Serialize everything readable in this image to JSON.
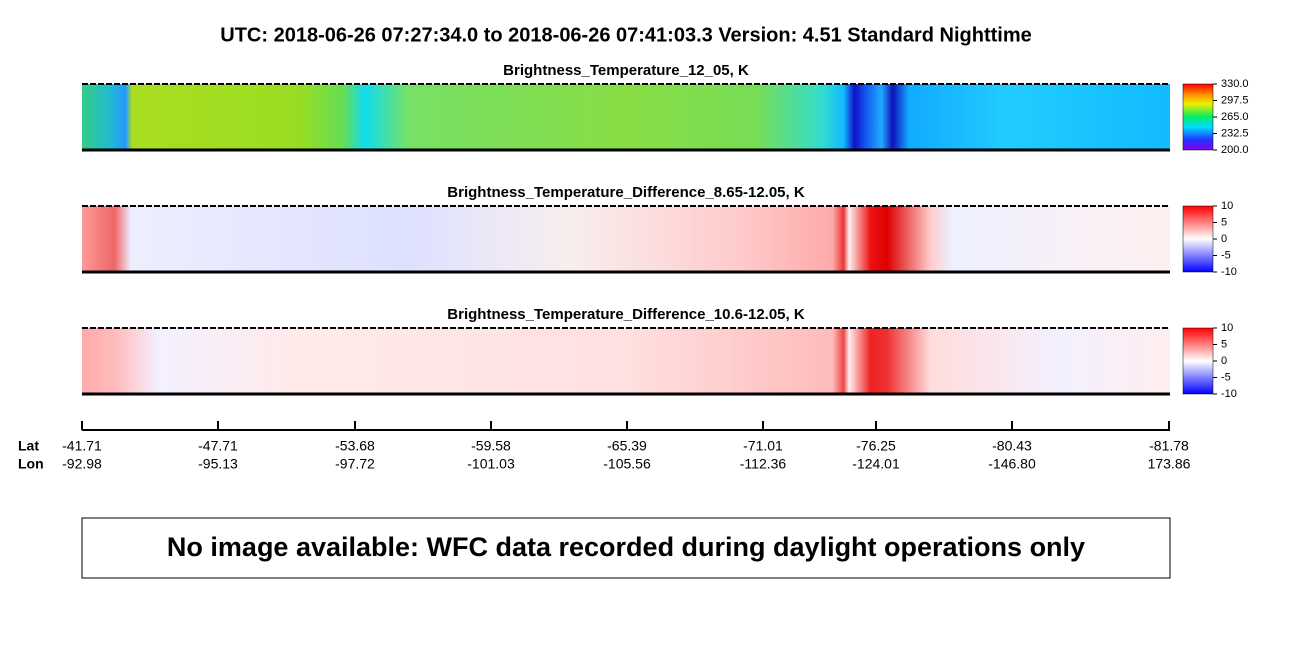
{
  "header": {
    "title": "UTC:  2018-06-26   07:27:34.0  to  2018-06-26   07:41:03.3    Version: 4.51  Standard Nighttime"
  },
  "panels": [
    {
      "title": "Brightness_Temperature_12_05, K",
      "colorbar": {
        "lim": [
          200,
          330
        ],
        "ticks": [
          {
            "value": 200,
            "label": "200.0"
          },
          232.5,
          {
            "value": 265,
            "label": "265.0"
          },
          297.5,
          {
            "value": 330,
            "label": "330.0"
          }
        ]
      }
    },
    {
      "title": "Brightness_Temperature_Difference_8.65-12.05, K",
      "colorbar": {
        "lim": [
          -10,
          10
        ],
        "ticks": [
          -10,
          -5,
          0,
          5,
          10
        ]
      }
    },
    {
      "title": "Brightness_Temperature_Difference_10.6-12.05, K",
      "colorbar": {
        "lim": [
          -10,
          10
        ],
        "ticks": [
          -10,
          -5,
          0,
          5,
          10
        ]
      }
    }
  ],
  "track_axis": {
    "row_labels": [
      "Lat",
      "Lon"
    ],
    "ticks": [
      {
        "lat": "-41.71",
        "lon": "-92.98"
      },
      {
        "lat": "-47.71",
        "lon": "-95.13"
      },
      {
        "lat": "-53.68",
        "lon": "-97.72"
      },
      {
        "lat": "-59.58",
        "lon": "-101.03"
      },
      {
        "lat": "-65.39",
        "lon": "-105.56"
      },
      {
        "lat": "-71.01",
        "lon": "-112.36"
      },
      {
        "lat": "-76.25",
        "lon": "-124.01"
      },
      {
        "lat": "-80.43",
        "lon": "-146.80"
      },
      {
        "lat": "-81.78",
        "lon": "173.86"
      }
    ]
  },
  "message": "No image available: WFC data recorded during daylight operations only"
}
